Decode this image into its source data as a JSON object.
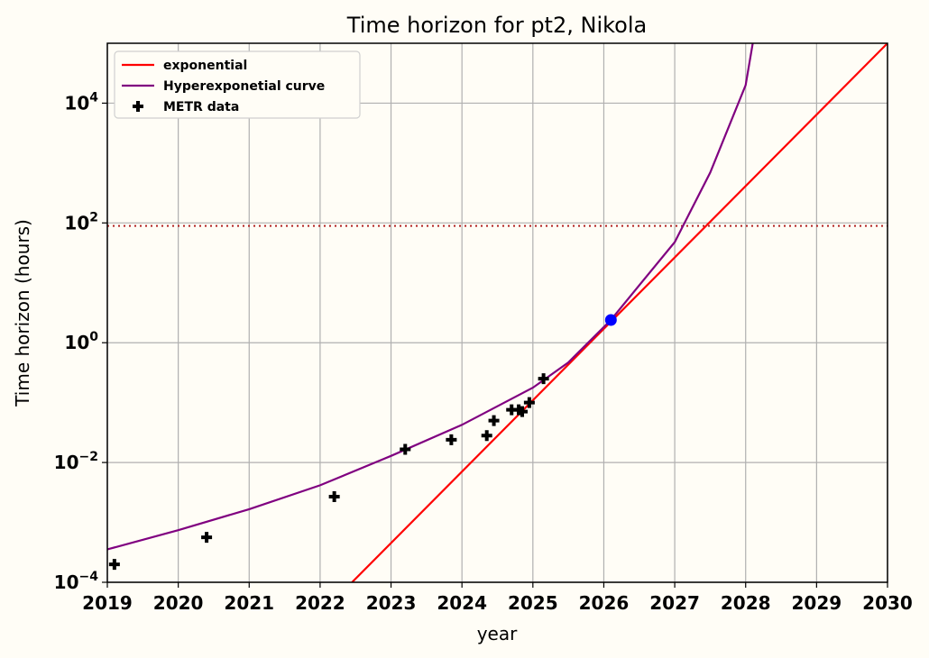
{
  "chart_data": {
    "type": "line",
    "title": "Time horizon for pt2, Nikola",
    "xlabel": "year",
    "ylabel": "Time horizon (hours)",
    "xlim": [
      2019,
      2030
    ],
    "ylim_log10": [
      -4,
      5
    ],
    "yscale": "log",
    "grid": true,
    "legend_position": "top-left",
    "x_ticks": [
      2019,
      2020,
      2021,
      2022,
      2023,
      2024,
      2025,
      2026,
      2027,
      2028,
      2029,
      2030
    ],
    "x_tick_labels": [
      "2019",
      "2020",
      "2021",
      "2022",
      "2023",
      "2024",
      "2025",
      "2026",
      "2027",
      "2028",
      "2029",
      "2030"
    ],
    "y_ticks_log10": [
      -4,
      -2,
      0,
      2,
      4
    ],
    "y_tick_labels": [
      {
        "base": "10",
        "exp": "−4"
      },
      {
        "base": "10",
        "exp": "−2"
      },
      {
        "base": "10",
        "exp": "0"
      },
      {
        "base": "10",
        "exp": "2"
      },
      {
        "base": "10",
        "exp": "4"
      }
    ],
    "series": [
      {
        "name": "exponential",
        "kind": "line",
        "color": "#ff0000",
        "x": [
          2022.45,
          2030.0
        ],
        "log10_y": [
          -4.0,
          5.0
        ]
      },
      {
        "name": "Hyperexponetial curve",
        "kind": "line",
        "color": "#800080",
        "x": [
          2019.0,
          2020.0,
          2021.0,
          2022.0,
          2023.0,
          2024.0,
          2025.0,
          2025.5,
          2026.1,
          2026.5,
          2027.0,
          2027.5,
          2028.0,
          2028.1
        ],
        "log10_y": [
          -3.45,
          -3.13,
          -2.78,
          -2.38,
          -1.89,
          -1.37,
          -0.75,
          -0.33,
          0.38,
          0.96,
          1.68,
          2.84,
          4.3,
          5.0
        ]
      },
      {
        "name": "METR data",
        "kind": "scatter",
        "marker": "plus",
        "color": "#000000",
        "x": [
          2019.1,
          2020.4,
          2022.2,
          2023.2,
          2023.85,
          2024.35,
          2024.45,
          2024.7,
          2024.8,
          2024.85,
          2024.95,
          2025.15
        ],
        "log10_y": [
          -3.7,
          -3.25,
          -2.57,
          -1.78,
          -1.62,
          -1.55,
          -1.3,
          -1.12,
          -1.12,
          -1.15,
          -1.0,
          -0.6
        ]
      },
      {
        "name": "current point",
        "kind": "point",
        "color": "#0000ff",
        "x": [
          2026.1
        ],
        "log10_y": [
          0.38
        ]
      }
    ],
    "reference_line": {
      "orientation": "horizontal",
      "log10_y": 1.95,
      "style": "dotted",
      "color": "#b22222"
    },
    "legend": [
      {
        "label": "exponential",
        "color": "#ff0000",
        "kind": "line"
      },
      {
        "label": "Hyperexponetial curve",
        "color": "#800080",
        "kind": "line"
      },
      {
        "label": "METR data",
        "color": "#000000",
        "kind": "plus"
      }
    ]
  }
}
